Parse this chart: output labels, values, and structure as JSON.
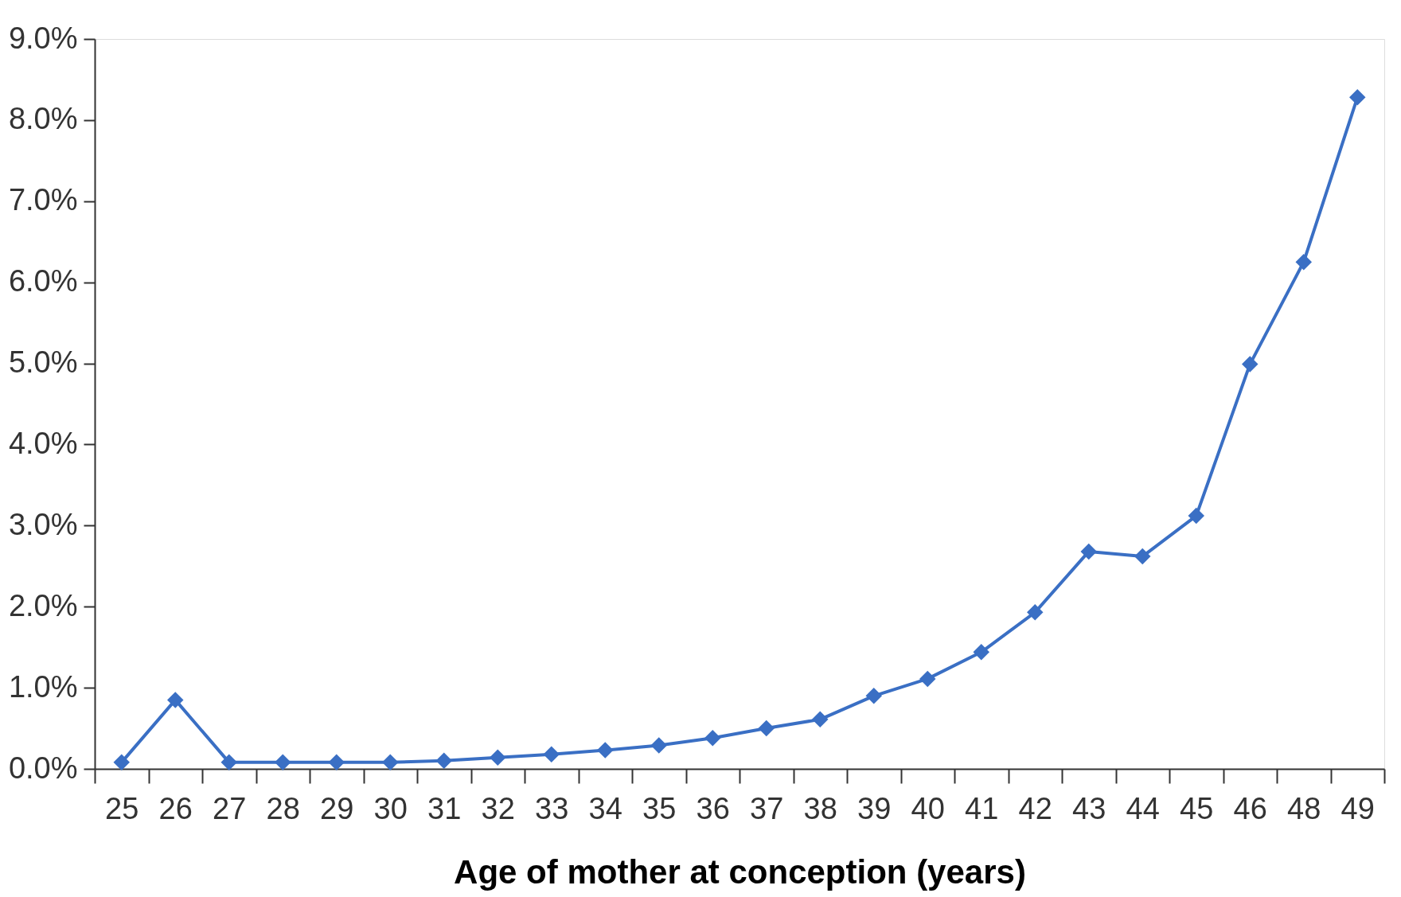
{
  "chart_data": {
    "type": "line",
    "xlabel": "Age of mother at conception (years)",
    "categories": [
      "25",
      "26",
      "27",
      "28",
      "29",
      "30",
      "31",
      "32",
      "33",
      "34",
      "35",
      "36",
      "37",
      "38",
      "39",
      "40",
      "41",
      "42",
      "43",
      "44",
      "45",
      "46",
      "48",
      "49"
    ],
    "series": [
      {
        "color": "#3a6fc4",
        "values": [
          0.08,
          0.85,
          0.08,
          0.08,
          0.08,
          0.08,
          0.1,
          0.14,
          0.18,
          0.23,
          0.29,
          0.38,
          0.5,
          0.61,
          0.9,
          1.11,
          1.44,
          1.93,
          2.68,
          2.62,
          3.12,
          4.99,
          6.25,
          8.28
        ]
      }
    ],
    "ylim": [
      0,
      9
    ],
    "yticks": [
      {
        "value": 0,
        "label": "0.0%"
      },
      {
        "value": 1,
        "label": "1.0%"
      },
      {
        "value": 2,
        "label": "2.0%"
      },
      {
        "value": 3,
        "label": "3.0%"
      },
      {
        "value": 4,
        "label": "4.0%"
      },
      {
        "value": 5,
        "label": "5.0%"
      },
      {
        "value": 6,
        "label": "6.0%"
      },
      {
        "value": 7,
        "label": "7.0%"
      },
      {
        "value": 8,
        "label": "8.0%"
      },
      {
        "value": 9,
        "label": "9.0%"
      }
    ],
    "grid": false,
    "marker": "diamond",
    "line_style": "solid"
  }
}
